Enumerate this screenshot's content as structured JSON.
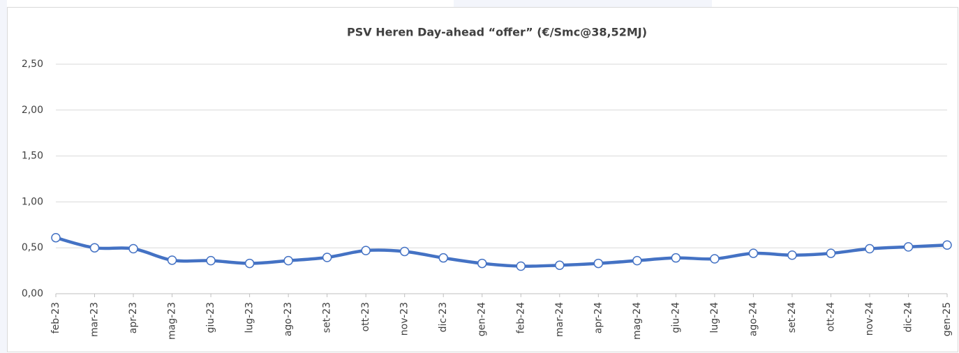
{
  "chart_data": {
    "type": "line",
    "title": "PSV Heren Day-ahead “offer” (€/Smc@38,52MJ)",
    "categories": [
      "feb-23",
      "mar-23",
      "apr-23",
      "mag-23",
      "giu-23",
      "lug-23",
      "ago-23",
      "set-23",
      "ott-23",
      "nov-23",
      "dic-23",
      "gen-24",
      "feb-24",
      "mar-24",
      "apr-24",
      "mag-24",
      "giu-24",
      "lug-24",
      "ago-24",
      "set-24",
      "ott-24",
      "nov-24",
      "dic-24",
      "gen-25"
    ],
    "series": [
      {
        "name": "PSV Heren Day-ahead offer",
        "color": "#4472c4",
        "values": [
          0.61,
          0.5,
          0.49,
          0.365,
          0.36,
          0.33,
          0.36,
          0.395,
          0.47,
          0.46,
          0.39,
          0.33,
          0.3,
          0.31,
          0.33,
          0.36,
          0.39,
          0.38,
          0.44,
          0.42,
          0.44,
          0.49,
          0.51,
          0.53
        ]
      }
    ],
    "ylim": [
      0,
      2.5
    ],
    "yticks": [
      {
        "value": 0,
        "label": "0,00"
      },
      {
        "value": 0.5,
        "label": "0,50"
      },
      {
        "value": 1,
        "label": "1,00"
      },
      {
        "value": 1.5,
        "label": "1,50"
      },
      {
        "value": 2,
        "label": "2,00"
      },
      {
        "value": 2.5,
        "label": "2,50"
      }
    ],
    "grid": true
  }
}
